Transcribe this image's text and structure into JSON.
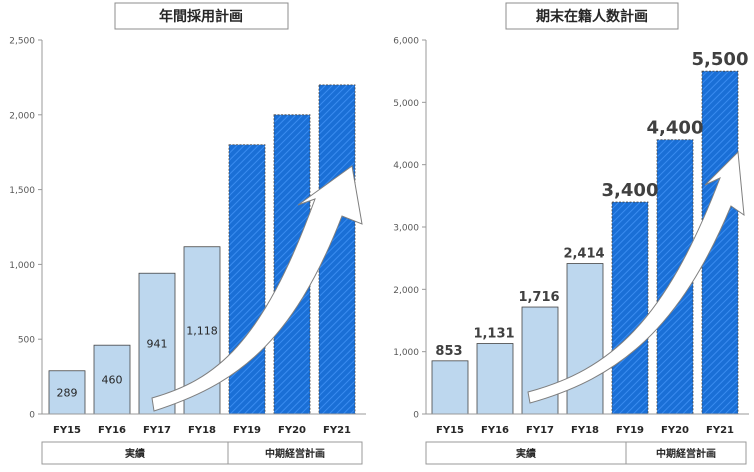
{
  "chart_data": [
    {
      "type": "bar",
      "title": "年間採用計画",
      "categories": [
        "FY15",
        "FY16",
        "FY17",
        "FY18",
        "FY19",
        "FY20",
        "FY21"
      ],
      "values": [
        289,
        460,
        941,
        1118,
        1800,
        2000,
        2200
      ],
      "data_labels": [
        "289",
        "460",
        "941",
        "1,118",
        "",
        "",
        ""
      ],
      "ylim": [
        0,
        2500
      ],
      "yticks": [
        0,
        500,
        1000,
        1500,
        2000,
        2500
      ],
      "ytick_labels": [
        "0",
        "500",
        "1,000",
        "1,500",
        "2,000",
        "2,500"
      ],
      "grid": false,
      "groups": [
        {
          "label": "実績",
          "categories": [
            "FY15",
            "FY16",
            "FY17",
            "FY18"
          ],
          "color": "#bdd7ee"
        },
        {
          "label": "中期経営計画",
          "categories": [
            "FY19",
            "FY20",
            "FY21"
          ],
          "color": "#1a6fd6"
        }
      ]
    },
    {
      "type": "bar",
      "title": "期末在籍人数計画",
      "categories": [
        "FY15",
        "FY16",
        "FY17",
        "FY18",
        "FY19",
        "FY20",
        "FY21"
      ],
      "values": [
        853,
        1131,
        1716,
        2414,
        3400,
        4400,
        5500
      ],
      "data_labels": [
        "853",
        "1,131",
        "1,716",
        "2,414",
        "3,400",
        "4,400",
        "5,500"
      ],
      "ylim": [
        0,
        6000
      ],
      "yticks": [
        0,
        1000,
        2000,
        3000,
        4000,
        5000,
        6000
      ],
      "ytick_labels": [
        "0",
        "1,000",
        "2,000",
        "3,000",
        "4,000",
        "5,000",
        "6,000"
      ],
      "grid": false,
      "groups": [
        {
          "label": "実績",
          "categories": [
            "FY15",
            "FY16",
            "FY17",
            "FY18"
          ],
          "color": "#bdd7ee"
        },
        {
          "label": "中期経営計画",
          "categories": [
            "FY19",
            "FY20",
            "FY21"
          ],
          "color": "#1a6fd6"
        }
      ]
    }
  ],
  "colors": {
    "actual_fill": "#bdd7ee",
    "plan_fill": "#1a6fd6",
    "plan_stripe": "#3a8cf0",
    "bar_outline": "#444444",
    "axis": "#999999",
    "tick_text": "#595959",
    "label_text": "#404040"
  }
}
